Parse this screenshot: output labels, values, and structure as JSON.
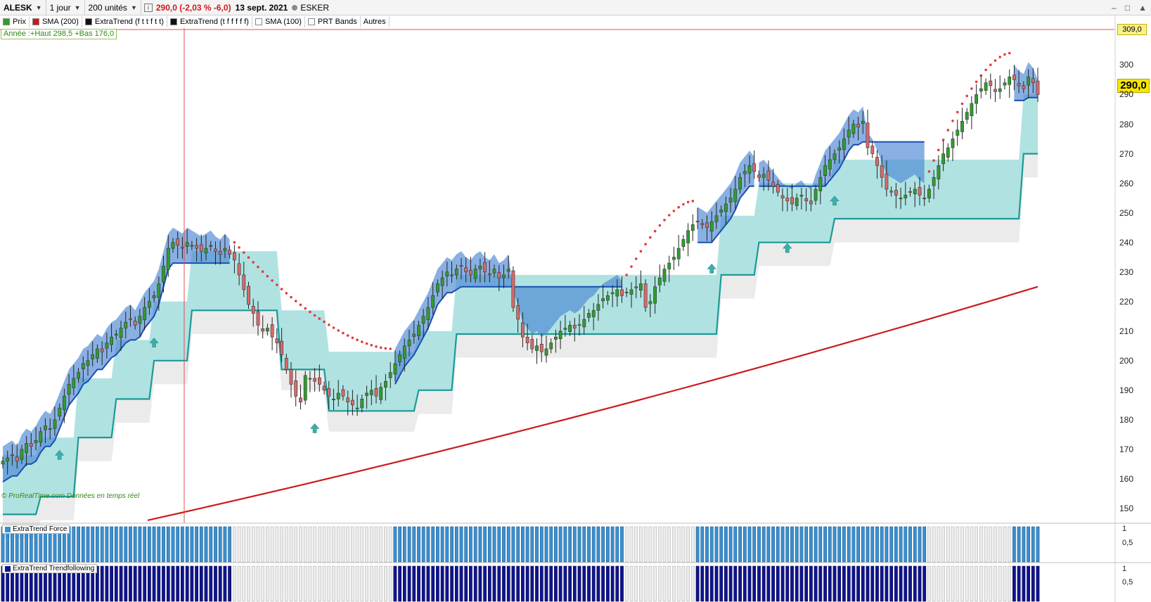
{
  "toolbar": {
    "symbol": "ALESK",
    "period": "1 jour",
    "units": "200 unités",
    "info_icon": "info-icon",
    "price_change": "290,0 (-2,03 % -6,0)",
    "date": "13 sept. 2021",
    "instrument": "ESKER",
    "window_controls": [
      "–",
      "□",
      "▲"
    ]
  },
  "legend": [
    {
      "label": "Prix",
      "color": "#2e9e2e"
    },
    {
      "label": "SMA (200)",
      "color": "#cc1a1a"
    },
    {
      "label": "ExtraTrend (f t t f t t)",
      "color": "#111111"
    },
    {
      "label": "ExtraTrend (t f f f f f)",
      "color": "#111111"
    },
    {
      "label": "SMA (100)",
      "color": "#ffffff"
    },
    {
      "label": "PRT Bands",
      "color": "#ffffff"
    },
    {
      "label": "Autres",
      "color": ""
    }
  ],
  "year_box": "Année :+Haut 298,5 +Bas 176,0",
  "watermark": "© ProRealTime.com  Données en temps réel",
  "price_axis": {
    "ticks": [
      "300",
      "290",
      "280",
      "270",
      "260",
      "250",
      "240",
      "230",
      "220",
      "210",
      "200",
      "190",
      "180",
      "170",
      "160",
      "150"
    ],
    "tag_high": "309,0",
    "tag_last": "290,0"
  },
  "panels": [
    {
      "label": "ExtraTrend Force",
      "color": "#3a8fd0",
      "ticks": [
        "1",
        "0,5"
      ]
    },
    {
      "label": "ExtraTrend Trendfollowing",
      "color": "#10148e",
      "ticks": [
        "1",
        "0,5"
      ]
    }
  ],
  "colors": {
    "bull": "#2e9e2e",
    "bear": "#d8696b",
    "sma200": "#cc1a1a",
    "blue_band": "#4a86d2",
    "teal_band": "#8ed6d6",
    "teal_line": "#1a9a96",
    "grey_band": "#e4e4e4",
    "red_dots": "#e23a3a",
    "panel_force": "#3a8fd0",
    "panel_trend": "#10148e",
    "panel_off": "#ececec"
  },
  "chart_data": {
    "type": "candlestick",
    "title": "ALESK",
    "ylim": [
      145,
      312
    ],
    "last_price": 290.0,
    "year_high": 298.5,
    "year_low": 176.0,
    "sma200_start": 146,
    "sma200_end": 225,
    "trend_segments": [
      {
        "from": 0,
        "to": 48,
        "state": "up"
      },
      {
        "from": 49,
        "to": 82,
        "state": "down"
      },
      {
        "from": 83,
        "to": 131,
        "state": "up"
      },
      {
        "from": 132,
        "to": 146,
        "state": "down"
      },
      {
        "from": 147,
        "to": 159,
        "state": "up"
      },
      {
        "from": 160,
        "to": 195,
        "state": "up"
      },
      {
        "from": 196,
        "to": 213,
        "state": "down"
      },
      {
        "from": 214,
        "to": 237,
        "state": "up"
      }
    ],
    "closes": [
      166,
      167,
      168,
      166,
      170,
      172,
      171,
      173,
      176,
      178,
      177,
      180,
      184,
      188,
      192,
      194,
      196,
      199,
      200,
      202,
      204,
      203,
      206,
      208,
      209,
      211,
      213,
      214,
      212,
      215,
      218,
      220,
      222,
      226,
      232,
      238,
      240,
      239,
      238,
      240,
      239,
      238,
      237,
      238,
      239,
      237,
      236,
      238,
      236,
      234,
      229,
      224,
      219,
      216,
      212,
      210,
      211,
      208,
      206,
      202,
      197,
      192,
      188,
      186,
      195,
      194,
      193,
      192,
      190,
      188,
      187,
      189,
      188,
      186,
      185,
      184,
      187,
      189,
      190,
      188,
      191,
      193,
      196,
      199,
      202,
      205,
      207,
      209,
      212,
      215,
      218,
      222,
      226,
      228,
      230,
      229,
      231,
      232,
      230,
      229,
      231,
      232,
      230,
      229,
      231,
      228,
      229,
      231,
      218,
      214,
      208,
      206,
      204,
      205,
      203,
      204,
      206,
      208,
      210,
      211,
      212,
      211,
      212,
      214,
      216,
      217,
      219,
      221,
      222,
      223,
      224,
      222,
      223,
      224,
      225,
      226,
      218,
      220,
      225,
      228,
      231,
      233,
      235,
      238,
      241,
      244,
      246,
      247,
      246,
      245,
      247,
      249,
      251,
      253,
      255,
      258,
      262,
      264,
      266,
      264,
      262,
      263,
      261,
      259,
      257,
      255,
      254,
      253,
      255,
      256,
      254,
      253,
      258,
      262,
      266,
      268,
      270,
      272,
      275,
      278,
      280,
      279,
      281,
      272,
      270,
      266,
      262,
      258,
      257,
      256,
      255,
      256,
      257,
      258,
      256,
      255,
      258,
      262,
      266,
      270,
      272,
      275,
      278,
      281,
      284,
      287,
      290,
      292,
      294,
      293,
      291,
      292,
      294,
      296,
      295,
      293,
      292,
      296,
      294,
      290
    ]
  }
}
